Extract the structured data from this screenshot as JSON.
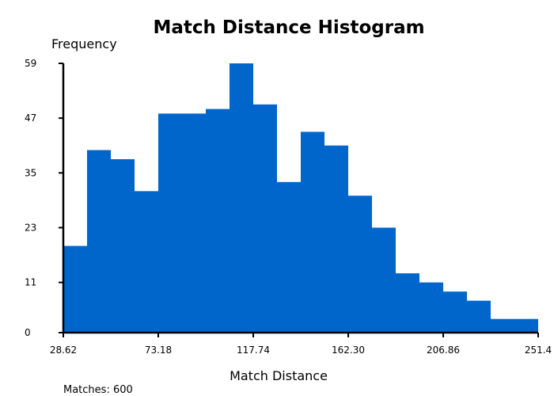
{
  "chart_data": {
    "type": "bar",
    "title": "Match Distance Histogram",
    "xlabel": "Match Distance",
    "ylabel": "Frequency",
    "footer": "Matches: 600",
    "bar_color": "#0066cc",
    "axis_color": "#000000",
    "x_range": [
      28.62,
      251.4
    ],
    "ylim": [
      0,
      59
    ],
    "x_ticks": [
      {
        "value": 28.62,
        "label": "28.62"
      },
      {
        "value": 73.18,
        "label": "73.18"
      },
      {
        "value": 117.74,
        "label": "117.74"
      },
      {
        "value": 162.3,
        "label": "162.30"
      },
      {
        "value": 206.86,
        "label": "206.86"
      },
      {
        "value": 251.4,
        "label": "251.4"
      }
    ],
    "y_ticks": [
      {
        "value": 0,
        "label": "0"
      },
      {
        "value": 11,
        "label": "11"
      },
      {
        "value": 23,
        "label": "23"
      },
      {
        "value": 35,
        "label": "35"
      },
      {
        "value": 47,
        "label": "47"
      },
      {
        "value": 59,
        "label": "59"
      }
    ],
    "bins": 20,
    "values": [
      19,
      40,
      38,
      31,
      48,
      48,
      49,
      59,
      50,
      33,
      44,
      41,
      30,
      23,
      13,
      11,
      9,
      7,
      3,
      3
    ]
  }
}
